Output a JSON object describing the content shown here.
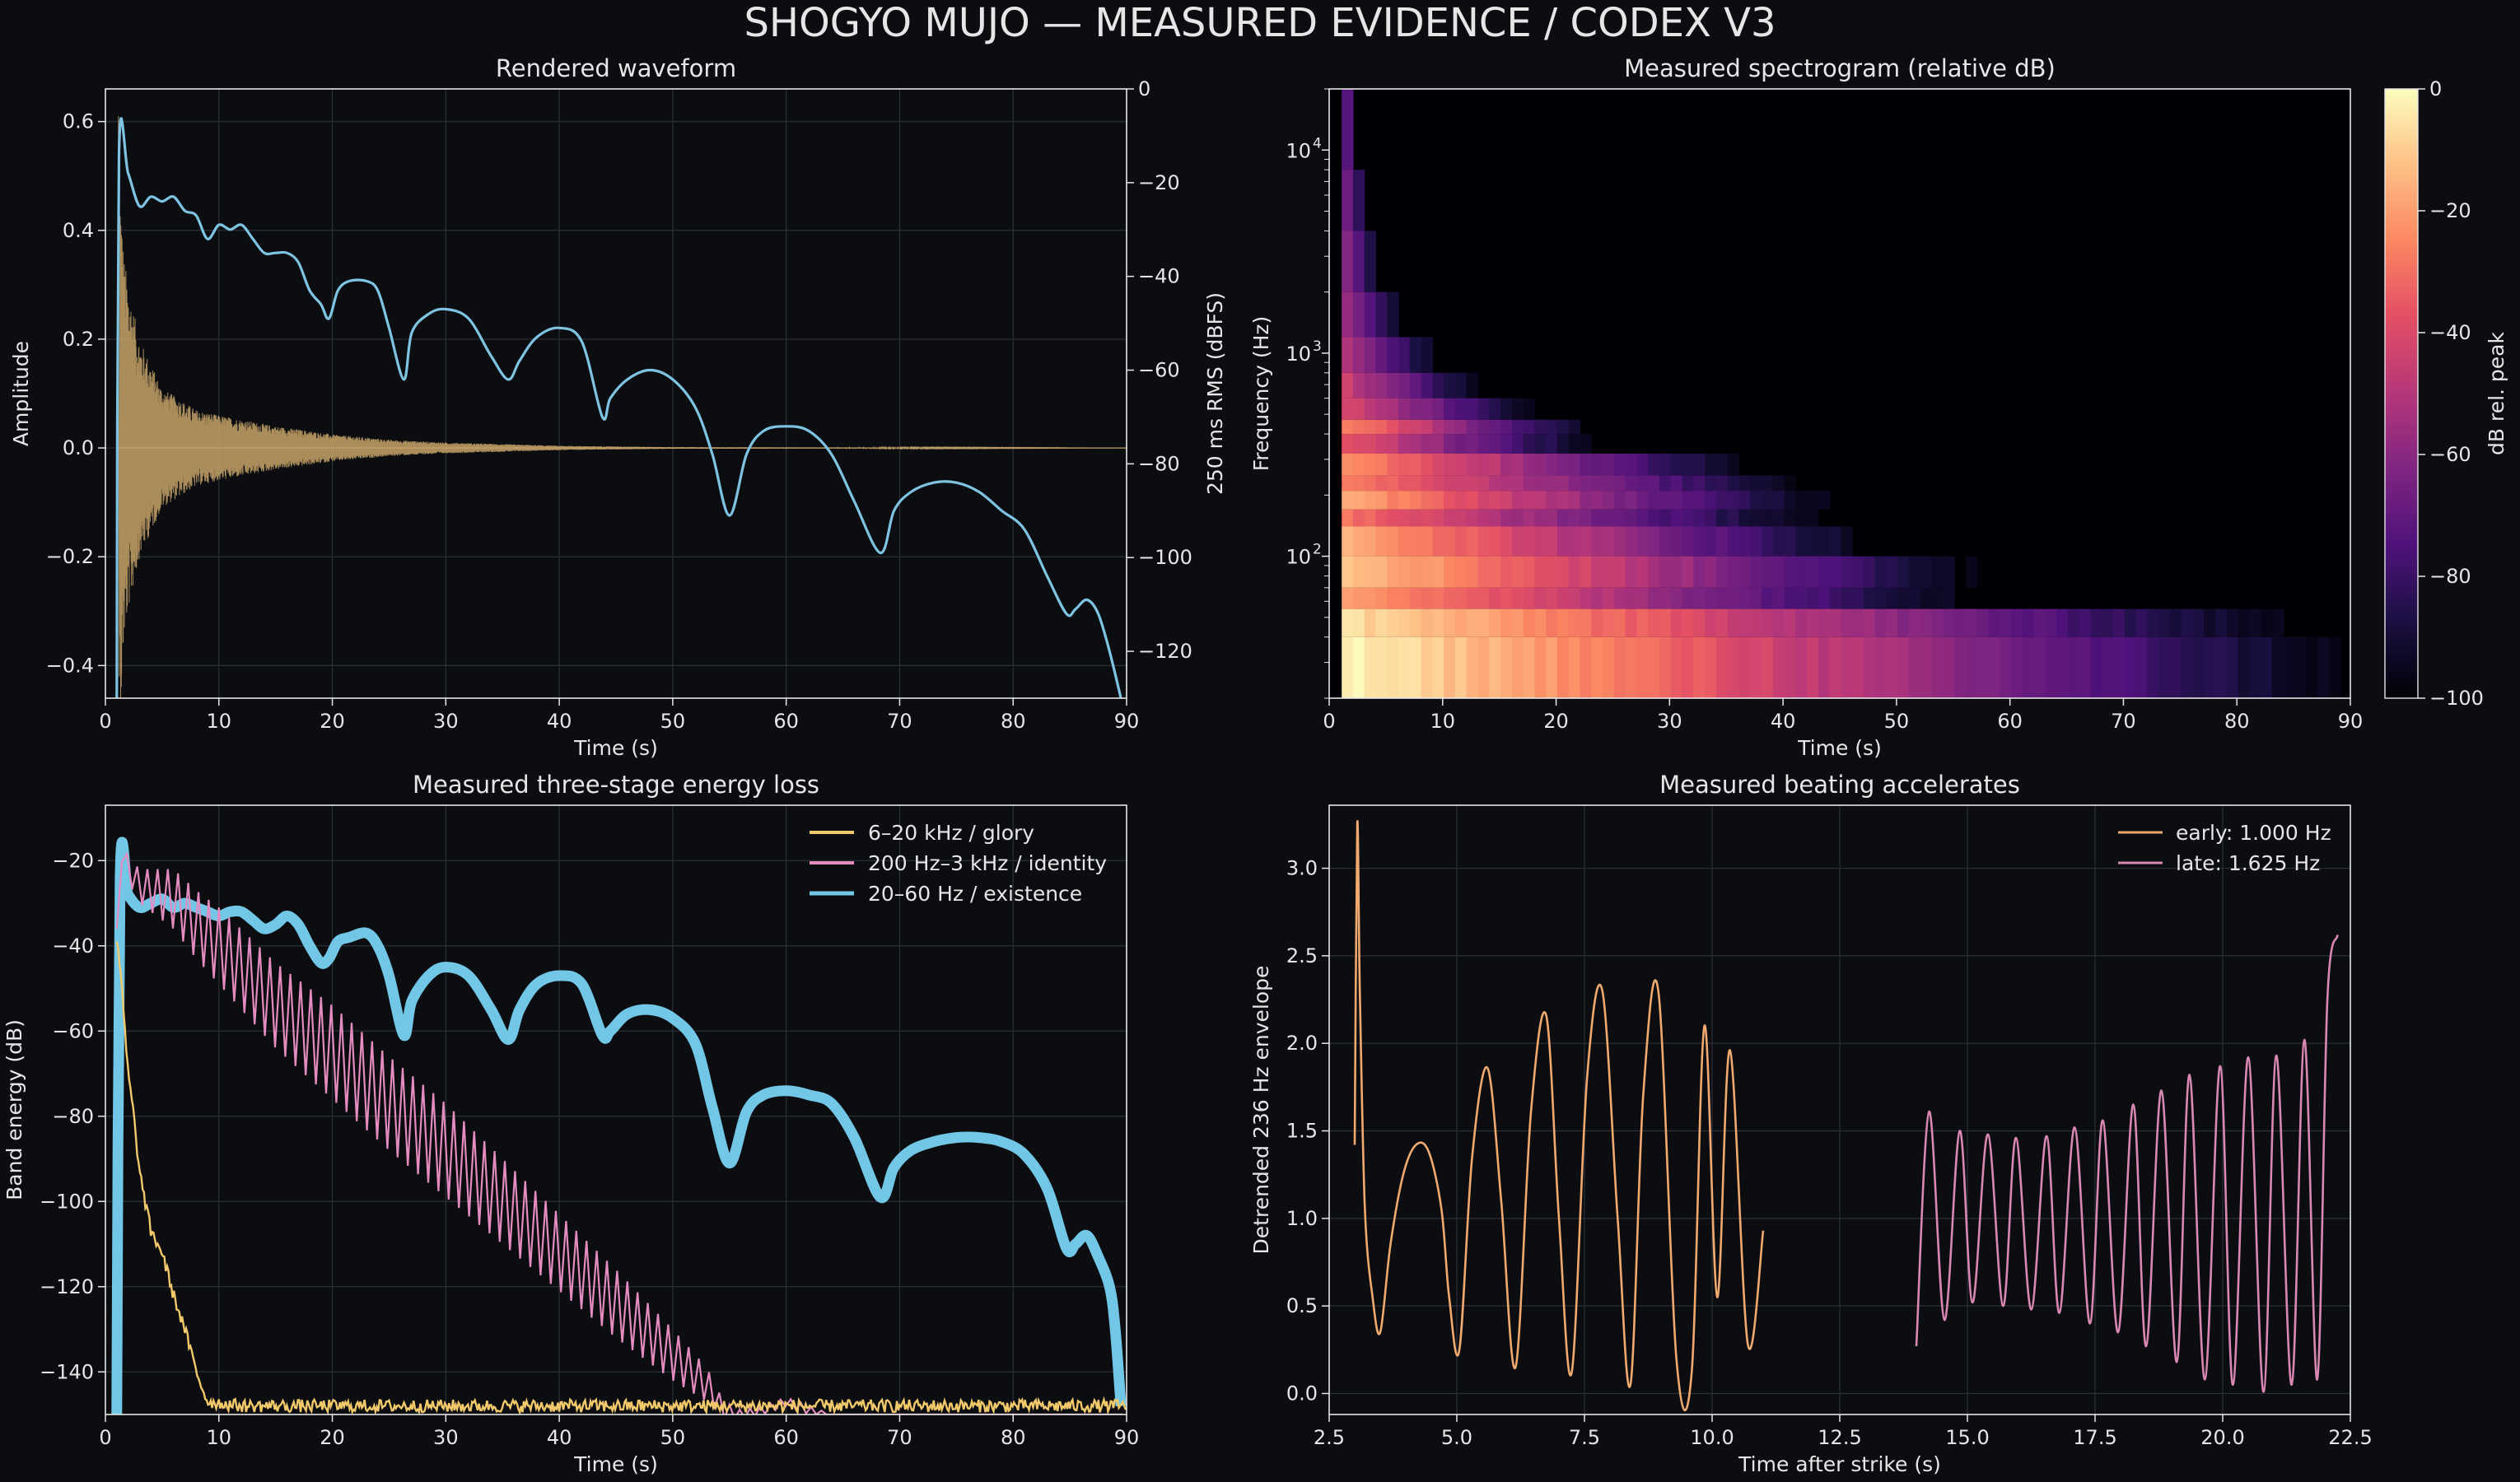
{
  "figure": {
    "title": "SHOGYO MUJO — MEASURED EVIDENCE / CODEX V3",
    "colors": {
      "background": "#0b0d11",
      "axes": "#0b0d11",
      "spine": "#e6e6e6",
      "grid": "#2c3037",
      "text": "#e6e6e6"
    }
  },
  "chart_data": [
    {
      "id": "waveform",
      "type": "line",
      "title": "Rendered waveform",
      "xlabel": "Time (s)",
      "ylabel": "Amplitude",
      "y2label": "250 ms RMS (dBFS)",
      "xlim": [
        0,
        90
      ],
      "ylim": [
        -0.46,
        0.66
      ],
      "y2lim": [
        -130,
        0
      ],
      "xticks": [
        "0",
        "10",
        "20",
        "30",
        "40",
        "50",
        "60",
        "70",
        "80",
        "90"
      ],
      "yticks": [
        "−0.4",
        "−0.2",
        "0.0",
        "0.2",
        "0.4",
        "0.6"
      ],
      "y2ticks": [
        "0",
        "−20",
        "−40",
        "−60",
        "−80",
        "−100",
        "−120"
      ],
      "grid": true,
      "series": [
        {
          "role": "waveform",
          "color": "#c8a56a",
          "strike_time": 1.1,
          "peak_amplitude": 0.61,
          "min_amplitude": -0.42,
          "envelope": {
            "t": [
              1.1,
              1.6,
              2.0,
              3.0,
              5.0,
              8.0,
              10.0,
              15.0,
              20.0,
              25.0,
              30.0,
              40.0,
              50.0,
              90.0
            ],
            "amp": [
              0.6,
              0.36,
              0.3,
              0.2,
              0.11,
              0.07,
              0.06,
              0.04,
              0.025,
              0.015,
              0.01,
              0.004,
              0.0015,
              0.0
            ]
          }
        },
        {
          "role": "rms",
          "axis": "y2",
          "color": "#7ec4e2",
          "x": [
            1.0,
            1.2,
            2.0,
            3.0,
            4.0,
            5.0,
            6.0,
            7.0,
            8.0,
            9.0,
            10.0,
            11.0,
            12.0,
            13.0,
            14.0,
            15.0,
            16.0,
            17.0,
            18.0,
            19.0,
            19.7,
            20.5,
            21.5,
            23.0,
            24.0,
            25.0,
            26.3,
            27.0,
            28.5,
            30.0,
            32.0,
            34.0,
            35.5,
            36.5,
            38.0,
            40.0,
            42.0,
            43.8,
            44.5,
            46.0,
            48.0,
            50.0,
            52.0,
            53.5,
            55.0,
            56.5,
            58.0,
            60.0,
            62.0,
            64.0,
            66.0,
            68.3,
            69.5,
            71.0,
            73.0,
            75.0,
            77.0,
            79.0,
            81.0,
            83.0,
            84.7,
            85.5,
            86.5,
            87.5,
            88.5,
            89.5
          ],
          "y": [
            -130,
            -14,
            -18,
            -25,
            -23,
            -24,
            -23,
            -26,
            -27,
            -32,
            -29,
            -30,
            -29,
            -32,
            -35,
            -35,
            -35,
            -37,
            -43,
            -46,
            -49,
            -43,
            -41,
            -41,
            -43,
            -51,
            -62,
            -52,
            -48,
            -47,
            -49,
            -57,
            -62,
            -58,
            -53,
            -51,
            -54,
            -70,
            -66,
            -62,
            -60,
            -62,
            -68,
            -78,
            -91,
            -78,
            -73,
            -72,
            -73,
            -78,
            -88,
            -99,
            -90,
            -86,
            -84,
            -84,
            -86,
            -90,
            -94,
            -104,
            -112,
            -111,
            -109,
            -112,
            -120,
            -130
          ]
        }
      ]
    },
    {
      "id": "spectrogram",
      "type": "heatmap",
      "title": "Measured spectrogram (relative dB)",
      "xlabel": "Time (s)",
      "ylabel": "Frequency (Hz)",
      "colorbar_label": "dB rel. peak",
      "xlim": [
        0,
        90
      ],
      "ylim": [
        20,
        20000
      ],
      "yscale": "log",
      "clim": [
        -100,
        0
      ],
      "colormap": "magma",
      "xticks": [
        "0",
        "10",
        "20",
        "30",
        "40",
        "50",
        "60",
        "70",
        "80",
        "90"
      ],
      "yticks": [
        "10",
        "10",
        "10"
      ],
      "ytick_exponents": [
        "2",
        "3",
        "4"
      ],
      "cbar_ticks": [
        "0",
        "−20",
        "−40",
        "−60",
        "−80",
        "−100"
      ],
      "bands": [
        {
          "f": [
            20,
            40
          ],
          "decay_end": 89,
          "peak_db": -2
        },
        {
          "f": [
            40,
            55
          ],
          "decay_end": 84,
          "peak_db": -6
        },
        {
          "f": [
            55,
            70
          ],
          "decay_end": 57,
          "peak_db": -18
        },
        {
          "f": [
            70,
            100
          ],
          "decay_end": 57,
          "peak_db": -10
        },
        {
          "f": [
            100,
            140
          ],
          "decay_end": 48,
          "peak_db": -15
        },
        {
          "f": [
            140,
            170
          ],
          "decay_end": 43,
          "peak_db": -30
        },
        {
          "f": [
            170,
            210
          ],
          "decay_end": 44,
          "peak_db": -18
        },
        {
          "f": [
            210,
            250
          ],
          "decay_end": 42,
          "peak_db": -25
        },
        {
          "f": [
            250,
            320
          ],
          "decay_end": 37,
          "peak_db": -22
        },
        {
          "f": [
            320,
            400
          ],
          "decay_end": 23,
          "peak_db": -35
        },
        {
          "f": [
            400,
            470
          ],
          "decay_end": 23,
          "peak_db": -25
        },
        {
          "f": [
            470,
            600
          ],
          "decay_end": 18,
          "peak_db": -40
        },
        {
          "f": [
            600,
            800
          ],
          "decay_end": 13,
          "peak_db": -45
        },
        {
          "f": [
            800,
            1200
          ],
          "decay_end": 9,
          "peak_db": -50
        },
        {
          "f": [
            1200,
            2000
          ],
          "decay_end": 6,
          "peak_db": -55
        },
        {
          "f": [
            2000,
            4000
          ],
          "decay_end": 4,
          "peak_db": -60
        },
        {
          "f": [
            4000,
            8000
          ],
          "decay_end": 3,
          "peak_db": -65
        },
        {
          "f": [
            8000,
            20000
          ],
          "decay_end": 2,
          "peak_db": -72
        }
      ]
    },
    {
      "id": "energy",
      "type": "line",
      "title": "Measured three-stage energy loss",
      "xlabel": "Time (s)",
      "ylabel": "Band energy (dB)",
      "xlim": [
        0,
        90
      ],
      "ylim": [
        -150,
        -7
      ],
      "xticks": [
        "0",
        "10",
        "20",
        "30",
        "40",
        "50",
        "60",
        "70",
        "80",
        "90"
      ],
      "yticks": [
        "−140",
        "−120",
        "−100",
        "−80",
        "−60",
        "−40",
        "−20"
      ],
      "grid": true,
      "legend": "top-right",
      "series": [
        {
          "name": "6–20 kHz / glory",
          "color": "#f2c96a",
          "x": [
            1.0,
            1.3,
            2.0,
            2.5,
            3.0,
            3.5,
            4.0,
            5.0,
            6.0,
            7.0,
            8.0,
            9.0,
            12.0,
            20.0,
            30.0,
            40.0,
            50.0,
            60.0,
            70.0,
            80.0,
            90.0
          ],
          "y": [
            -40,
            -45,
            -70,
            -80,
            -93,
            -100,
            -107,
            -112,
            -122,
            -130,
            -140,
            -147,
            -148,
            -148,
            -148,
            -148,
            -148,
            -148,
            -148,
            -148,
            -148
          ],
          "noise": 1.5
        },
        {
          "name": "200 Hz–3 kHz / identity",
          "color": "#e48cc0",
          "x": [
            1.0,
            1.3,
            2.0,
            3.0,
            4.0,
            5.0,
            6.0,
            8.0,
            10.0,
            15.0,
            20.0,
            25.0,
            30.0,
            35.0,
            40.0,
            45.0,
            50.0,
            53.0,
            54.5,
            56.0,
            58.0,
            60.0,
            62.0,
            64.0,
            70.0,
            80.0,
            90.0
          ],
          "y": [
            -36,
            -17,
            -22,
            -26,
            -27,
            -28,
            -29,
            -35,
            -40,
            -54,
            -65,
            -77,
            -88,
            -100,
            -112,
            -124,
            -136,
            -143,
            -149,
            -150,
            -149,
            -147,
            -149,
            -150,
            -150,
            -150,
            -150
          ],
          "ripple": [
            0,
            2,
            3,
            4,
            5,
            6,
            7,
            8,
            9,
            10,
            11,
            11,
            11,
            10,
            9,
            8,
            6,
            4,
            2,
            1,
            1,
            1,
            1,
            0,
            0,
            0,
            0
          ]
        },
        {
          "name": "20–60 Hz / existence",
          "color": "#72c6e6",
          "x": [
            1.0,
            1.3,
            2.0,
            3.0,
            4.0,
            5.0,
            6.0,
            7.0,
            8.0,
            9.0,
            10.0,
            11.0,
            12.0,
            13.0,
            14.0,
            15.0,
            16.0,
            17.0,
            18.0,
            19.0,
            19.7,
            20.5,
            21.5,
            23.0,
            24.0,
            25.0,
            26.3,
            27.0,
            28.5,
            30.0,
            32.0,
            34.0,
            35.5,
            36.5,
            38.0,
            40.0,
            42.0,
            43.8,
            44.5,
            46.0,
            48.0,
            50.0,
            52.0,
            53.5,
            55.0,
            56.5,
            58.0,
            60.0,
            62.0,
            64.0,
            66.0,
            68.3,
            69.5,
            71.0,
            73.0,
            75.0,
            77.0,
            79.0,
            81.0,
            83.0,
            84.7,
            85.5,
            86.5,
            87.5,
            88.5,
            89.0,
            89.5
          ],
          "y": [
            -150,
            -24,
            -28,
            -31,
            -30,
            -29,
            -31,
            -30,
            -31,
            -32,
            -33,
            -32,
            -32,
            -34,
            -36,
            -35,
            -33,
            -35,
            -40,
            -44,
            -43,
            -39,
            -38,
            -37,
            -40,
            -47,
            -61,
            -53,
            -47,
            -45,
            -47,
            -55,
            -62,
            -55,
            -49,
            -47,
            -49,
            -61,
            -60,
            -56,
            -55,
            -57,
            -63,
            -78,
            -91,
            -79,
            -75,
            -74,
            -75,
            -77,
            -85,
            -99,
            -92,
            -88,
            -86,
            -85,
            -85,
            -86,
            -89,
            -97,
            -111,
            -110,
            -108,
            -113,
            -120,
            -130,
            -148
          ],
          "band": 2.5
        }
      ]
    },
    {
      "id": "beating",
      "type": "line",
      "title": "Measured beating accelerates",
      "xlabel": "Time after strike (s)",
      "ylabel": "Detrended 236 Hz envelope",
      "xlim": [
        2.5,
        22.5
      ],
      "ylim": [
        -0.12,
        3.36
      ],
      "xticks": [
        "2.5",
        "5.0",
        "7.5",
        "10.0",
        "12.5",
        "15.0",
        "17.5",
        "20.0",
        "22.5"
      ],
      "yticks": [
        "0.0",
        "0.5",
        "1.0",
        "1.5",
        "2.0",
        "2.5",
        "3.0"
      ],
      "grid": true,
      "legend": "top-right",
      "series": [
        {
          "name": "early: 1.000 Hz",
          "color": "#f0a96e",
          "x": [
            3.0,
            3.05,
            3.1,
            3.2,
            3.35,
            3.5,
            3.7,
            3.95,
            4.2,
            4.45,
            4.7,
            4.85,
            5.05,
            5.3,
            5.6,
            5.87,
            6.15,
            6.45,
            6.75,
            7.0,
            7.25,
            7.55,
            7.85,
            8.15,
            8.4,
            8.65,
            8.95,
            9.3,
            9.6,
            9.85,
            10.1,
            10.35,
            10.7,
            11.0
          ],
          "y": [
            1.42,
            3.25,
            2.3,
            1.05,
            0.55,
            0.35,
            0.85,
            1.25,
            1.42,
            1.38,
            1.05,
            0.55,
            0.25,
            1.35,
            1.86,
            1.1,
            0.15,
            1.6,
            2.16,
            1.0,
            0.12,
            1.8,
            2.3,
            1.0,
            0.05,
            1.7,
            2.29,
            0.2,
            0.12,
            2.1,
            0.55,
            1.96,
            0.28,
            0.93
          ]
        },
        {
          "name": "late: 1.625 Hz",
          "color": "#d987b3",
          "x": [
            14.0,
            14.25,
            14.55,
            14.85,
            15.1,
            15.4,
            15.7,
            15.95,
            16.25,
            16.55,
            16.8,
            17.1,
            17.4,
            17.65,
            17.95,
            18.25,
            18.5,
            18.8,
            19.1,
            19.35,
            19.65,
            19.95,
            20.2,
            20.5,
            20.8,
            21.05,
            21.35,
            21.6,
            21.85,
            22.05,
            22.25
          ],
          "y": [
            0.27,
            1.61,
            0.42,
            1.5,
            0.52,
            1.48,
            0.5,
            1.46,
            0.48,
            1.47,
            0.46,
            1.52,
            0.4,
            1.56,
            0.35,
            1.65,
            0.27,
            1.73,
            0.18,
            1.82,
            0.08,
            1.87,
            0.05,
            1.92,
            0.01,
            1.93,
            0.05,
            2.02,
            0.08,
            2.25,
            2.62
          ]
        }
      ]
    }
  ]
}
